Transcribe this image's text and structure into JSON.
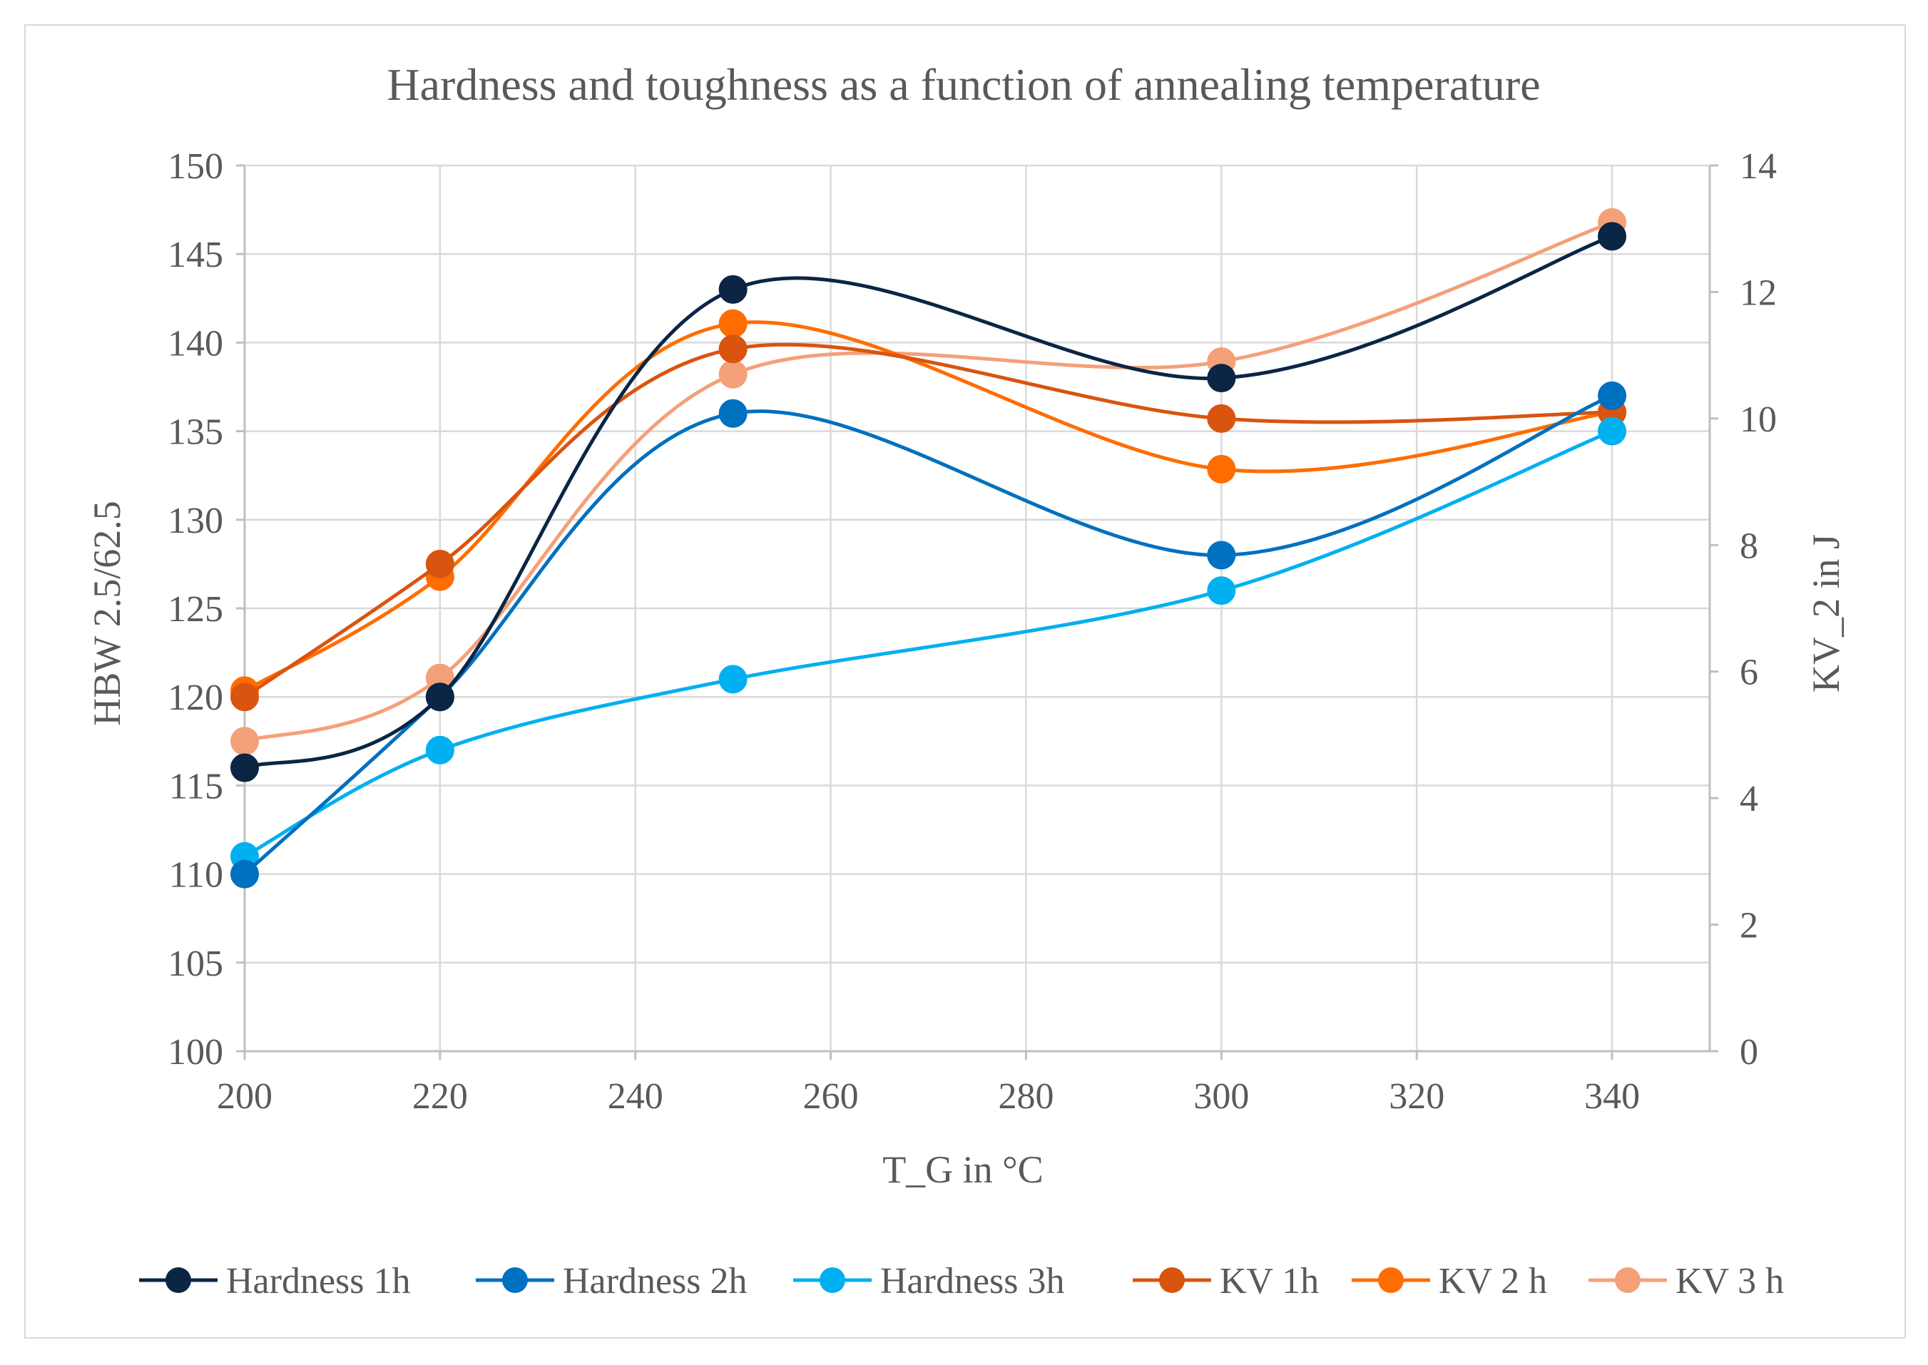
{
  "chart_data": {
    "type": "line",
    "title": "Hardness and toughness as a function of annealing temperature",
    "xlabel": "T_G in °C",
    "ylabel": "HBW 2.5/62.5",
    "y2label": "KV_2 in J",
    "xlim": [
      200,
      350
    ],
    "ylim": [
      100,
      150
    ],
    "y2lim": [
      0,
      14
    ],
    "xticks": [
      200,
      220,
      240,
      260,
      280,
      300,
      320,
      340
    ],
    "yticks": [
      100,
      105,
      110,
      115,
      120,
      125,
      130,
      135,
      140,
      145,
      150
    ],
    "y2ticks": [
      0,
      2,
      4,
      6,
      8,
      10,
      12,
      14
    ],
    "grid": true,
    "smooth": true,
    "legend": "bottom",
    "x": [
      200,
      220,
      250,
      300,
      340
    ],
    "series": [
      {
        "name": "Hardness 1h",
        "axis": "left",
        "color": "#0b2545",
        "values": [
          116,
          120,
          143,
          138,
          146
        ]
      },
      {
        "name": "Hardness 2h",
        "axis": "left",
        "color": "#0070c0",
        "values": [
          110,
          120,
          136,
          128,
          137
        ]
      },
      {
        "name": "Hardness 3h",
        "axis": "left",
        "color": "#00b0f0",
        "values": [
          111,
          117,
          121,
          126,
          135
        ]
      },
      {
        "name": "KV 1h",
        "axis": "right",
        "color": "#d9540f",
        "values": [
          5.6,
          7.7,
          11.1,
          10.0,
          10.1
        ]
      },
      {
        "name": "KV 2 h",
        "axis": "right",
        "color": "#ff6d00",
        "values": [
          5.7,
          7.5,
          11.5,
          9.2,
          10.1
        ]
      },
      {
        "name": "KV 3 h",
        "axis": "right",
        "color": "#f4a079",
        "values": [
          4.9,
          5.9,
          10.7,
          10.9,
          13.1
        ]
      }
    ]
  }
}
